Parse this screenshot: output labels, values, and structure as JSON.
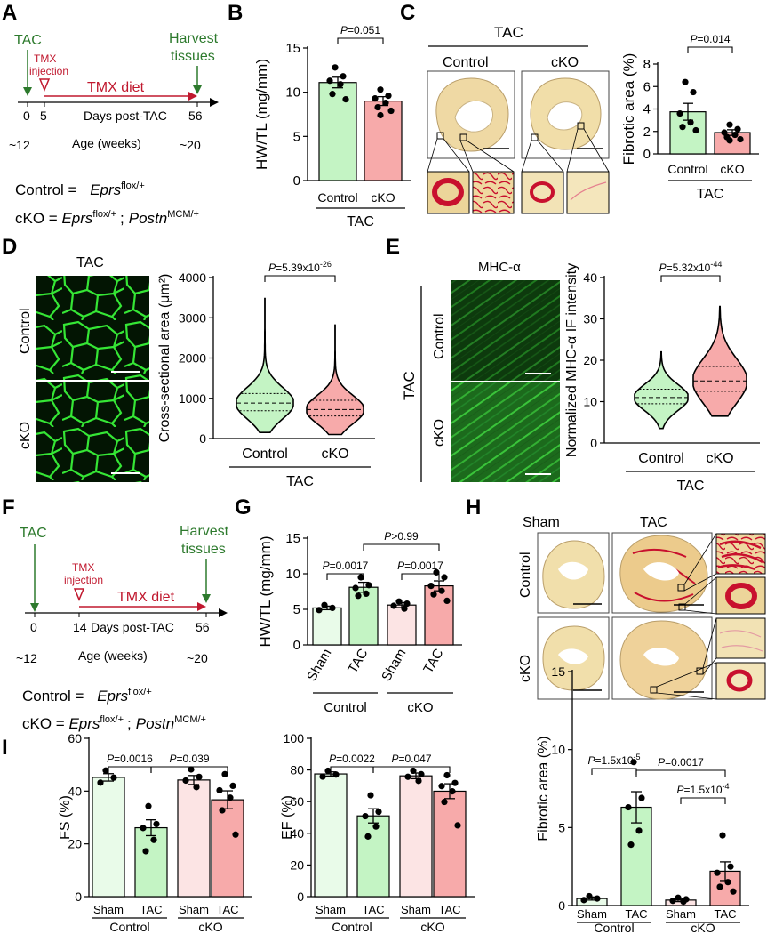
{
  "panels": {
    "A": {
      "label": "A",
      "tac": "TAC",
      "tmx_injection_l1": "TMX",
      "tmx_injection_l2": "injection",
      "tmx_diet": "TMX diet",
      "harvest_l1": "Harvest",
      "harvest_l2": "tissues",
      "ticks": [
        "0",
        "5",
        "56"
      ],
      "days_label": "Days post-TAC",
      "age_start": "~12",
      "age_label": "Age (weeks)",
      "age_end": "~20",
      "control_def": "Control = ",
      "cko_def": "cKO = ",
      "gene": "Eprs",
      "flox": "flox/+",
      "postn": "Postn",
      "mcm": "MCM/+",
      "semicolon": ";"
    },
    "B": {
      "label": "B"
    },
    "C": {
      "label": "C",
      "tac": "TAC",
      "control": "Control",
      "cko": "cKO"
    },
    "D": {
      "label": "D",
      "tac": "TAC",
      "control": "Control",
      "cko": "cKO"
    },
    "E": {
      "label": "E",
      "mhc": "MHC-α",
      "tac": "TAC",
      "control": "Control",
      "cko": "cKO"
    },
    "F": {
      "label": "F",
      "tac": "TAC",
      "tmx_injection_l1": "TMX",
      "tmx_injection_l2": "injection",
      "tmx_diet": "TMX diet",
      "harvest_l1": "Harvest",
      "harvest_l2": "tissues",
      "ticks": [
        "0",
        "14",
        "56"
      ],
      "days_label": "Days post-TAC",
      "age_start": "~12",
      "age_label": "Age (weeks)",
      "age_end": "~20",
      "control_def": "Control = ",
      "cko_def": "cKO = ",
      "gene": "Eprs",
      "flox": "flox/+",
      "postn": "Postn",
      "mcm": "MCM/+",
      "semicolon": ";"
    },
    "G": {
      "label": "G"
    },
    "H": {
      "label": "H",
      "sham": "Sham",
      "tac": "TAC",
      "control": "Control",
      "cko": "cKO"
    },
    "I": {
      "label": "I"
    }
  },
  "colors": {
    "green": "#c4f4c4",
    "red": "#f7aaaa",
    "light_green": "#e9fbe9",
    "light_red": "#fce4e4",
    "dark_green": "#2d7a2d",
    "dark_red": "#c0182e",
    "stain_bg": "#f0dca6",
    "stain_red": "#c8102e"
  },
  "chart_data": [
    {
      "id": "B",
      "type": "bar",
      "ylabel": "HW/TL (mg/mm)",
      "ylim": [
        0,
        15
      ],
      "yticks": [
        0,
        5,
        10,
        15
      ],
      "categories": [
        "Control",
        "cKO"
      ],
      "values": [
        11.1,
        9.0
      ],
      "errors": [
        0.6,
        0.5
      ],
      "points": [
        [
          12.8,
          11.8,
          11.3,
          10.9,
          9.8,
          9.2
        ],
        [
          10.3,
          9.6,
          9.3,
          8.8,
          8.3,
          7.9,
          7.4
        ]
      ],
      "group_label": "TAC",
      "pvalue": "P=0.051"
    },
    {
      "id": "C",
      "type": "bar",
      "ylabel": "Fibrotic area (%)",
      "ylim": [
        0,
        8
      ],
      "yticks": [
        0,
        2,
        4,
        6,
        8
      ],
      "categories": [
        "Control",
        "cKO"
      ],
      "values": [
        3.75,
        1.9
      ],
      "errors": [
        0.75,
        0.25
      ],
      "points": [
        [
          6.4,
          5.5,
          3.6,
          2.8,
          2.4,
          2.1
        ],
        [
          2.6,
          2.2,
          1.9,
          1.7,
          1.5,
          1.3,
          1.2
        ]
      ],
      "group_label": "TAC",
      "pvalue": "P=0.014"
    },
    {
      "id": "D",
      "type": "violin",
      "ylabel": "Cross-sectional area  (μm²)",
      "ylim": [
        0,
        4000
      ],
      "yticks": [
        0,
        1000,
        2000,
        3000,
        4000
      ],
      "categories": [
        "Control",
        "cKO"
      ],
      "medians": [
        880,
        720
      ],
      "q1": [
        690,
        560
      ],
      "q3": [
        1120,
        950
      ],
      "min": [
        150,
        100
      ],
      "max": [
        3480,
        2820
      ],
      "group_label": "TAC",
      "pvalue": "P=5.39x10",
      "pvalue_exp": "-26"
    },
    {
      "id": "E",
      "type": "violin",
      "ylabel": "Normalized MHC-α IF intensity",
      "ylim": [
        0,
        40
      ],
      "yticks": [
        0,
        10,
        20,
        30,
        40
      ],
      "categories": [
        "Control",
        "cKO"
      ],
      "medians": [
        11,
        15
      ],
      "q1": [
        9.5,
        12.5
      ],
      "q3": [
        13,
        18.5
      ],
      "min": [
        3.5,
        6.5
      ],
      "max": [
        22,
        33
      ],
      "group_label": "TAC",
      "pvalue": "P=5.32x10",
      "pvalue_exp": "-44"
    },
    {
      "id": "G",
      "type": "bar",
      "ylabel": "HW/TL (mg/mm)",
      "ylim": [
        0,
        15
      ],
      "yticks": [
        0,
        5,
        10,
        15
      ],
      "categories": [
        "Sham",
        "TAC",
        "Sham",
        "TAC"
      ],
      "groups": [
        "Control",
        "cKO"
      ],
      "values": [
        5.2,
        8.1,
        5.6,
        8.3
      ],
      "errors": [
        0.25,
        0.7,
        0.35,
        0.7
      ],
      "points": [
        [
          5.6,
          5.2,
          4.9
        ],
        [
          9.5,
          8.4,
          8.0,
          7.2,
          6.9
        ],
        [
          6.1,
          5.8,
          5.5,
          5.1
        ],
        [
          10.2,
          9.5,
          8.3,
          7.6,
          7.1,
          6.2
        ]
      ],
      "pvalues": [
        "P=0.0017",
        "P=0.0017",
        "P>0.99"
      ]
    },
    {
      "id": "H",
      "type": "bar",
      "ylabel": "Fibrotic area (%)",
      "ylim": [
        0,
        15
      ],
      "yticks": [
        0,
        5,
        10,
        15
      ],
      "categories": [
        "Sham",
        "TAC",
        "Sham",
        "TAC"
      ],
      "groups": [
        "Control",
        "cKO"
      ],
      "values": [
        0.45,
        6.3,
        0.35,
        2.2
      ],
      "errors": [
        0.1,
        1.0,
        0.1,
        0.6
      ],
      "points": [
        [
          0.6,
          0.45,
          0.35
        ],
        [
          9.2,
          6.9,
          6.3,
          4.8,
          3.9
        ],
        [
          0.5,
          0.4,
          0.3,
          0.25
        ],
        [
          4.5,
          2.5,
          2.1,
          1.5,
          1.2,
          0.9
        ]
      ],
      "pvalues": [
        "P=1.5x10",
        "P=0.0017",
        "P=1.5x10"
      ],
      "pvalue_exps": [
        "-5",
        "-4"
      ]
    },
    {
      "id": "I1",
      "type": "bar",
      "ylabel": "FS (%)",
      "ylim": [
        0,
        60
      ],
      "yticks": [
        0,
        20,
        40,
        60
      ],
      "categories": [
        "Sham",
        "TAC",
        "Sham",
        "TAC"
      ],
      "groups": [
        "Control",
        "cKO"
      ],
      "values": [
        45.2,
        26.1,
        44.2,
        36.7
      ],
      "errors": [
        1.4,
        3.0,
        1.7,
        3.4
      ],
      "points": [
        [
          47.8,
          45.1,
          43.2
        ],
        [
          34.3,
          27.5,
          26.0,
          21.5,
          17.2
        ],
        [
          48.2,
          45.4,
          44.0,
          41.5
        ],
        [
          46.4,
          42.0,
          40.3,
          37.5,
          32.7,
          23.5
        ]
      ],
      "pvalues": [
        "P=0.0016",
        "P=0.039"
      ]
    },
    {
      "id": "I2",
      "type": "bar",
      "ylabel": "EF (%)",
      "ylim": [
        0,
        100
      ],
      "yticks": [
        0,
        20,
        40,
        60,
        80,
        100
      ],
      "categories": [
        "Sham",
        "TAC",
        "Sham",
        "TAC"
      ],
      "groups": [
        "Control",
        "cKO"
      ],
      "values": [
        77.5,
        51.0,
        76.3,
        66.6
      ],
      "errors": [
        1.3,
        4.5,
        1.8,
        4.7
      ],
      "points": [
        [
          79.5,
          77.1,
          75.8
        ],
        [
          64.0,
          53.6,
          50.8,
          44.3,
          38.0
        ],
        [
          79.5,
          77.3,
          75.7,
          73.1
        ],
        [
          76.7,
          71.8,
          69.8,
          66.5,
          59.8,
          45.0
        ]
      ],
      "pvalues": [
        "P=0.0022",
        "P=0.047"
      ]
    }
  ]
}
